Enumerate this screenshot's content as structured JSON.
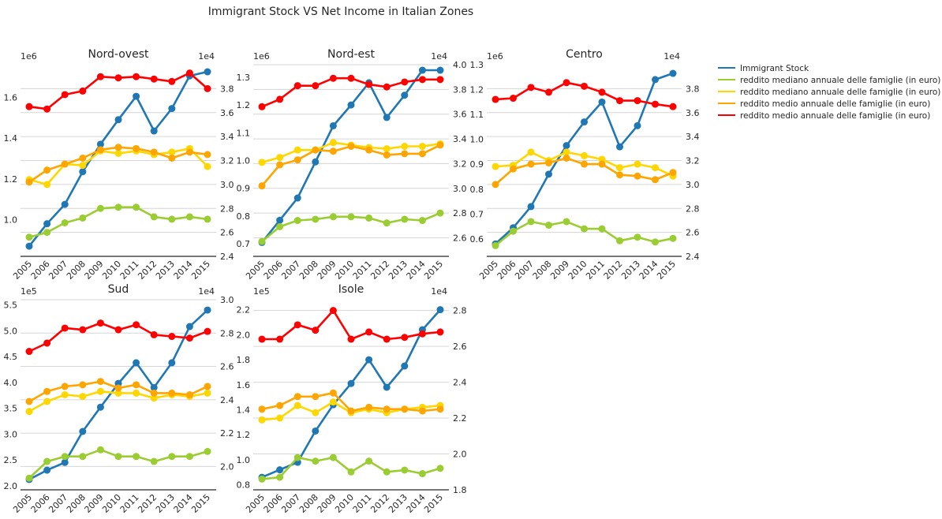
{
  "title": "Immigrant Stock VS Net Income in Italian Zones",
  "legend": {
    "position": "right",
    "entries": [
      {
        "label": "Immigrant Stock",
        "color": "#1f77b4"
      },
      {
        "label": "reddito mediano annuale delle famiglie (in euro)",
        "color": "#9acd32"
      },
      {
        "label": "reddito mediano annuale delle famiglie (in euro)",
        "color": "#ffd700"
      },
      {
        "label": "reddito medio annuale delle famiglie (in euro)",
        "color": "#ffa500"
      },
      {
        "label": "reddito medio annuale delle famiglie (in euro)",
        "color": "#ff0000"
      }
    ]
  },
  "chart_data": [
    {
      "type": "line",
      "title": "Nord-ovest",
      "x": [
        2005,
        2006,
        2007,
        2008,
        2009,
        2010,
        2011,
        2012,
        2013,
        2014,
        2015
      ],
      "left_axis": {
        "exponent": "1e6",
        "ticks": [
          1.0,
          1.2,
          1.4,
          1.6
        ],
        "tick_labels": [
          "1.0",
          "1.2",
          "1.4",
          "1.6"
        ],
        "ylim": [
          0.82,
          1.76
        ]
      },
      "right_axis": {
        "exponent": "1e4",
        "ticks": [
          2.4,
          2.6,
          2.8,
          3.0,
          3.2,
          3.4,
          3.6,
          3.8
        ],
        "tick_labels": [
          "2.4",
          "2.6",
          "2.8",
          "3.0",
          "3.2",
          "3.4",
          "3.6",
          "3.8"
        ],
        "ylim": [
          2.4,
          4.0
        ]
      },
      "series": [
        {
          "name": "Immigrant Stock",
          "axis": "left",
          "color": "#1f77b4",
          "values": [
            0.87,
            0.98,
            1.075,
            1.235,
            1.37,
            1.49,
            1.605,
            1.435,
            1.545,
            1.705,
            1.725
          ]
        },
        {
          "name": "reddito mediano annuale delle famiglie (in euro)",
          "axis": "right",
          "color": "#9acd32",
          "values": [
            2.56,
            2.6,
            2.68,
            2.72,
            2.8,
            2.81,
            2.81,
            2.73,
            2.71,
            2.73,
            2.71
          ]
        },
        {
          "name": "reddito mediano annuale delle famiglie (in euro)",
          "axis": "right",
          "color": "#ffd700",
          "values": [
            3.04,
            3.0,
            3.17,
            3.16,
            3.28,
            3.26,
            3.28,
            3.25,
            3.27,
            3.3,
            3.15
          ]
        },
        {
          "name": "reddito medio annuale delle famiglie (in euro)",
          "axis": "right",
          "color": "#ffa500",
          "values": [
            3.02,
            3.12,
            3.17,
            3.22,
            3.29,
            3.31,
            3.3,
            3.27,
            3.22,
            3.27,
            3.25
          ]
        },
        {
          "name": "reddito medio annuale delle famiglie (in euro)",
          "axis": "right",
          "color": "#ff0000",
          "values": [
            3.65,
            3.63,
            3.75,
            3.78,
            3.9,
            3.89,
            3.9,
            3.88,
            3.86,
            3.93,
            3.8
          ]
        }
      ]
    },
    {
      "type": "line",
      "title": "Nord-est",
      "x": [
        2005,
        2006,
        2007,
        2008,
        2009,
        2010,
        2011,
        2012,
        2013,
        2014,
        2015
      ],
      "left_axis": {
        "exponent": "1e6",
        "ticks": [
          0.7,
          0.8,
          0.9,
          1.0,
          1.1,
          1.2,
          1.3
        ],
        "tick_labels": [
          "0.7",
          "0.8",
          "0.9",
          "1.0",
          "1.1",
          "1.2",
          "1.3"
        ],
        "ylim": [
          0.655,
          1.345
        ]
      },
      "right_axis": {
        "exponent": "1e4",
        "ticks": [
          2.6,
          2.8,
          3.0,
          3.2,
          3.4,
          3.6,
          3.8,
          4.0
        ],
        "tick_labels": [
          "2.6",
          "2.8",
          "3.0",
          "3.2",
          "3.4",
          "3.6",
          "3.8",
          "4.0"
        ],
        "ylim": [
          2.45,
          4.0
        ]
      },
      "series": [
        {
          "name": "Immigrant Stock",
          "axis": "left",
          "color": "#1f77b4",
          "values": [
            0.705,
            0.785,
            0.865,
            0.995,
            1.125,
            1.2,
            1.28,
            1.155,
            1.235,
            1.325,
            1.325
          ]
        },
        {
          "name": "reddito mediano annuale delle famiglie (in euro)",
          "axis": "right",
          "color": "#9acd32",
          "values": [
            2.57,
            2.69,
            2.74,
            2.75,
            2.77,
            2.77,
            2.76,
            2.72,
            2.75,
            2.74,
            2.8
          ]
        },
        {
          "name": "reddito mediano annuale delle famiglie (in euro)",
          "axis": "right",
          "color": "#ffd700",
          "values": [
            3.21,
            3.25,
            3.31,
            3.31,
            3.37,
            3.35,
            3.33,
            3.32,
            3.34,
            3.34,
            3.36
          ]
        },
        {
          "name": "reddito medio annuale delle famiglie (in euro)",
          "axis": "right",
          "color": "#ffa500",
          "values": [
            3.02,
            3.19,
            3.23,
            3.31,
            3.3,
            3.34,
            3.31,
            3.27,
            3.28,
            3.28,
            3.35
          ]
        },
        {
          "name": "reddito medio annuale delle famiglie (in euro)",
          "axis": "right",
          "color": "#ff0000",
          "values": [
            3.66,
            3.72,
            3.83,
            3.83,
            3.89,
            3.89,
            3.84,
            3.82,
            3.86,
            3.88,
            3.88
          ]
        }
      ]
    },
    {
      "type": "line",
      "title": "Centro",
      "x": [
        2005,
        2006,
        2007,
        2008,
        2009,
        2010,
        2011,
        2012,
        2013,
        2014,
        2015
      ],
      "left_axis": {
        "exponent": "1e6",
        "ticks": [
          0.6,
          0.7,
          0.8,
          0.9,
          1.0,
          1.1,
          1.2,
          1.3
        ],
        "tick_labels": [
          "0.6",
          "0.7",
          "0.8",
          "0.9",
          "1.0",
          "1.1",
          "1.2",
          "1.3"
        ],
        "ylim": [
          0.53,
          1.3
        ]
      },
      "right_axis": {
        "exponent": "1e4",
        "ticks": [
          2.4,
          2.6,
          2.8,
          3.0,
          3.2,
          3.4,
          3.6,
          3.8
        ],
        "tick_labels": [
          "2.4",
          "2.6",
          "2.8",
          "3.0",
          "3.2",
          "3.4",
          "3.6",
          "3.8"
        ],
        "ylim": [
          2.4,
          4.0
        ]
      },
      "series": [
        {
          "name": "Immigrant Stock",
          "axis": "left",
          "color": "#1f77b4",
          "values": [
            0.58,
            0.645,
            0.73,
            0.86,
            0.975,
            1.07,
            1.15,
            0.97,
            1.055,
            1.24,
            1.265
          ]
        },
        {
          "name": "reddito mediano annuale delle famiglie (in euro)",
          "axis": "right",
          "color": "#9acd32",
          "values": [
            2.49,
            2.61,
            2.69,
            2.66,
            2.69,
            2.63,
            2.63,
            2.53,
            2.56,
            2.52,
            2.55
          ]
        },
        {
          "name": "reddito mediano annuale delle famiglie (in euro)",
          "axis": "right",
          "color": "#ffd700",
          "values": [
            3.15,
            3.16,
            3.27,
            3.2,
            3.27,
            3.24,
            3.21,
            3.14,
            3.17,
            3.14,
            3.07
          ]
        },
        {
          "name": "reddito medio annuale delle famiglie (in euro)",
          "axis": "right",
          "color": "#ffa500",
          "values": [
            3.0,
            3.13,
            3.17,
            3.18,
            3.22,
            3.17,
            3.17,
            3.08,
            3.07,
            3.04,
            3.1
          ]
        },
        {
          "name": "reddito medio annuale delle famiglie (in euro)",
          "axis": "right",
          "color": "#ff0000",
          "values": [
            3.71,
            3.72,
            3.81,
            3.77,
            3.85,
            3.82,
            3.77,
            3.7,
            3.7,
            3.67,
            3.65
          ]
        }
      ]
    },
    {
      "type": "line",
      "title": "Sud",
      "x": [
        2005,
        2006,
        2007,
        2008,
        2009,
        2010,
        2011,
        2012,
        2013,
        2014,
        2015
      ],
      "left_axis": {
        "exponent": "1e5",
        "ticks": [
          2.0,
          2.5,
          3.0,
          3.5,
          4.0,
          4.5,
          5.0,
          5.5
        ],
        "tick_labels": [
          "2.0",
          "2.5",
          "3.0",
          "3.5",
          "4.0",
          "4.5",
          "5.0",
          "5.5"
        ],
        "ylim": [
          1.92,
          5.6
        ]
      },
      "right_axis": {
        "exponent": "1e4",
        "ticks": [
          2.0,
          2.2,
          2.4,
          2.6,
          2.8,
          3.0
        ],
        "tick_labels": [
          "2.0",
          "2.2",
          "2.4",
          "2.6",
          "2.8",
          "3.0"
        ],
        "ylim": [
          1.86,
          3.0
        ]
      },
      "series": [
        {
          "name": "Immigrant Stock",
          "axis": "left",
          "color": "#1f77b4",
          "values": [
            2.12,
            2.3,
            2.45,
            3.05,
            3.52,
            3.98,
            4.38,
            3.9,
            4.38,
            5.08,
            5.4
          ]
        },
        {
          "name": "reddito mediano annuale delle famiglie (in euro)",
          "axis": "right",
          "color": "#9acd32",
          "values": [
            1.93,
            2.03,
            2.06,
            2.06,
            2.1,
            2.06,
            2.06,
            2.03,
            2.06,
            2.06,
            2.09
          ]
        },
        {
          "name": "reddito mediano annuale delle famiglie (in euro)",
          "axis": "right",
          "color": "#ffd700",
          "values": [
            2.33,
            2.39,
            2.43,
            2.42,
            2.45,
            2.44,
            2.44,
            2.41,
            2.43,
            2.42,
            2.44
          ]
        },
        {
          "name": "reddito medio annuale delle famiglie (in euro)",
          "axis": "right",
          "color": "#ffa500",
          "values": [
            2.39,
            2.45,
            2.48,
            2.49,
            2.51,
            2.47,
            2.49,
            2.44,
            2.44,
            2.43,
            2.48
          ]
        },
        {
          "name": "reddito medio annuale delle famiglie (in euro)",
          "axis": "right",
          "color": "#ff0000",
          "values": [
            2.69,
            2.74,
            2.83,
            2.82,
            2.86,
            2.82,
            2.85,
            2.79,
            2.78,
            2.77,
            2.81
          ]
        }
      ]
    },
    {
      "type": "line",
      "title": "Isole",
      "x": [
        2005,
        2006,
        2007,
        2008,
        2009,
        2010,
        2011,
        2012,
        2013,
        2014,
        2015
      ],
      "left_axis": {
        "exponent": "1e5",
        "ticks": [
          0.8,
          1.0,
          1.2,
          1.4,
          1.6,
          1.8,
          2.0,
          2.2
        ],
        "tick_labels": [
          "0.8",
          "1.0",
          "1.2",
          "1.4",
          "1.6",
          "1.8",
          "2.0",
          "2.2"
        ],
        "ylim": [
          0.76,
          2.28
        ]
      },
      "right_axis": {
        "exponent": "1e4",
        "ticks": [
          1.8,
          2.0,
          2.2,
          2.4,
          2.6,
          2.8
        ],
        "tick_labels": [
          "1.8",
          "2.0",
          "2.2",
          "2.4",
          "2.6",
          "2.8"
        ],
        "ylim": [
          1.8,
          2.86
        ]
      },
      "series": [
        {
          "name": "Immigrant Stock",
          "axis": "left",
          "color": "#1f77b4",
          "values": [
            0.86,
            0.92,
            0.98,
            1.23,
            1.44,
            1.61,
            1.8,
            1.58,
            1.75,
            2.04,
            2.2
          ]
        },
        {
          "name": "reddito mediano annuale delle famiglie (in euro)",
          "axis": "right",
          "color": "#9acd32",
          "values": [
            1.86,
            1.87,
            1.98,
            1.96,
            1.98,
            1.9,
            1.96,
            1.9,
            1.91,
            1.89,
            1.92
          ]
        },
        {
          "name": "reddito mediano annuale delle famiglie (in euro)",
          "axis": "right",
          "color": "#ffd700",
          "values": [
            2.19,
            2.2,
            2.27,
            2.23,
            2.29,
            2.23,
            2.25,
            2.23,
            2.25,
            2.26,
            2.27
          ]
        },
        {
          "name": "reddito medio annuale delle famiglie (in euro)",
          "axis": "right",
          "color": "#ffa500",
          "values": [
            2.25,
            2.27,
            2.32,
            2.32,
            2.34,
            2.24,
            2.26,
            2.25,
            2.25,
            2.24,
            2.25
          ]
        },
        {
          "name": "reddito medio annuale delle famiglie (in euro)",
          "axis": "right",
          "color": "#ff0000",
          "values": [
            2.64,
            2.64,
            2.72,
            2.69,
            2.8,
            2.64,
            2.68,
            2.64,
            2.65,
            2.67,
            2.68
          ]
        }
      ]
    }
  ]
}
